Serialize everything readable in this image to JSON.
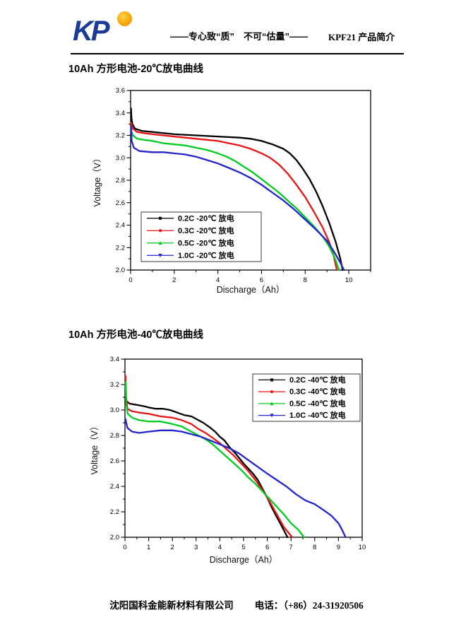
{
  "header": {
    "logo_text": "KP",
    "logo_color": "#1b3b97",
    "logo_sun_color": "#f7a300",
    "slogan": "——专心致“质”　不可“估量”——",
    "doc_label": "KPF21 产品简介"
  },
  "footer": {
    "company": "沈阳国科金能新材料有限公司",
    "phone": "电话：（+86）24-31920506"
  },
  "chart_data": [
    {
      "type": "line",
      "title": "10Ah 方形电池-20℃放电曲线",
      "xlabel": "Discharge（Ah）",
      "ylabel": "Voltage（V）",
      "xlim": [
        0,
        11
      ],
      "ylim": [
        2.0,
        3.6
      ],
      "grid": false,
      "legend_position": "lower-left",
      "x_ticks": {
        "values": [
          0,
          2,
          4,
          6,
          8,
          10
        ],
        "labels": [
          "0",
          "2",
          "4",
          "6",
          "8",
          "10"
        ]
      },
      "y_ticks": {
        "values": [
          2.0,
          2.2,
          2.4,
          2.6,
          2.8,
          3.0,
          3.2,
          3.4,
          3.6
        ],
        "labels": [
          "2.0",
          "2.2",
          "2.4",
          "2.6",
          "2.8",
          "3.0",
          "3.2",
          "3.4",
          "3.6"
        ]
      },
      "x_minor_step": 1,
      "y_minor_step": 0.1,
      "series": [
        {
          "name": "0.2C -20℃ 放电",
          "color": "#000000",
          "marker": "square",
          "points": [
            [
              0.02,
              3.44
            ],
            [
              0.04,
              3.36
            ],
            [
              0.08,
              3.3
            ],
            [
              0.2,
              3.26
            ],
            [
              0.5,
              3.24
            ],
            [
              1,
              3.23
            ],
            [
              1.5,
              3.22
            ],
            [
              2,
              3.21
            ],
            [
              3,
              3.2
            ],
            [
              4,
              3.19
            ],
            [
              5,
              3.18
            ],
            [
              5.5,
              3.17
            ],
            [
              6,
              3.15
            ],
            [
              6.5,
              3.12
            ],
            [
              7,
              3.08
            ],
            [
              7.3,
              3.04
            ],
            [
              7.6,
              2.98
            ],
            [
              7.9,
              2.9
            ],
            [
              8.2,
              2.81
            ],
            [
              8.5,
              2.7
            ],
            [
              8.8,
              2.57
            ],
            [
              9.1,
              2.42
            ],
            [
              9.4,
              2.25
            ],
            [
              9.6,
              2.11
            ],
            [
              9.72,
              2.0
            ]
          ]
        },
        {
          "name": "0.3C -20℃ 放电",
          "color": "#e81414",
          "marker": "circle",
          "points": [
            [
              0.02,
              3.31
            ],
            [
              0.1,
              3.26
            ],
            [
              0.3,
              3.23
            ],
            [
              0.6,
              3.22
            ],
            [
              1,
              3.21
            ],
            [
              1.5,
              3.2
            ],
            [
              2,
              3.19
            ],
            [
              2.5,
              3.18
            ],
            [
              3,
              3.17
            ],
            [
              3.5,
              3.16
            ],
            [
              4,
              3.15
            ],
            [
              4.5,
              3.13
            ],
            [
              5,
              3.11
            ],
            [
              5.5,
              3.08
            ],
            [
              6,
              3.04
            ],
            [
              6.4,
              3.0
            ],
            [
              6.8,
              2.94
            ],
            [
              7.2,
              2.86
            ],
            [
              7.6,
              2.76
            ],
            [
              8.0,
              2.65
            ],
            [
              8.4,
              2.52
            ],
            [
              8.8,
              2.38
            ],
            [
              9.1,
              2.25
            ],
            [
              9.3,
              2.13
            ],
            [
              9.45,
              2.0
            ]
          ]
        },
        {
          "name": "0.5C -20℃ 放电",
          "color": "#00cc22",
          "marker": "triangle-up",
          "points": [
            [
              0.02,
              3.25
            ],
            [
              0.1,
              3.2
            ],
            [
              0.3,
              3.17
            ],
            [
              0.6,
              3.16
            ],
            [
              1,
              3.15
            ],
            [
              1.5,
              3.13
            ],
            [
              2,
              3.12
            ],
            [
              2.5,
              3.11
            ],
            [
              3,
              3.09
            ],
            [
              3.5,
              3.07
            ],
            [
              4,
              3.04
            ],
            [
              4.4,
              3.01
            ],
            [
              4.8,
              2.97
            ],
            [
              5.2,
              2.92
            ],
            [
              5.6,
              2.87
            ],
            [
              6,
              2.81
            ],
            [
              6.4,
              2.75
            ],
            [
              6.8,
              2.69
            ],
            [
              7.2,
              2.62
            ],
            [
              7.6,
              2.55
            ],
            [
              8,
              2.47
            ],
            [
              8.4,
              2.39
            ],
            [
              8.8,
              2.3
            ],
            [
              9.1,
              2.21
            ],
            [
              9.35,
              2.11
            ],
            [
              9.55,
              2.0
            ]
          ]
        },
        {
          "name": "1.0C -20℃ 放电",
          "color": "#2424cc",
          "marker": "triangle-down",
          "points": [
            [
              0.02,
              3.28
            ],
            [
              0.05,
              3.15
            ],
            [
              0.15,
              3.09
            ],
            [
              0.4,
              3.06
            ],
            [
              1,
              3.05
            ],
            [
              1.5,
              3.05
            ],
            [
              2,
              3.04
            ],
            [
              2.5,
              3.03
            ],
            [
              3,
              3.01
            ],
            [
              3.5,
              2.98
            ],
            [
              4,
              2.95
            ],
            [
              4.5,
              2.91
            ],
            [
              5,
              2.87
            ],
            [
              5.5,
              2.82
            ],
            [
              6,
              2.76
            ],
            [
              6.5,
              2.69
            ],
            [
              7,
              2.62
            ],
            [
              7.5,
              2.54
            ],
            [
              8,
              2.45
            ],
            [
              8.5,
              2.36
            ],
            [
              9,
              2.26
            ],
            [
              9.3,
              2.17
            ],
            [
              9.6,
              2.07
            ],
            [
              9.78,
              2.0
            ]
          ]
        }
      ]
    },
    {
      "type": "line",
      "title": "10Ah 方形电池-40℃放电曲线",
      "xlabel": "Discharge（Ah）",
      "ylabel": "Voltage（V）",
      "xlim": [
        0,
        10
      ],
      "ylim": [
        2.0,
        3.4
      ],
      "grid": false,
      "legend_position": "upper-right",
      "x_ticks": {
        "values": [
          0,
          1,
          2,
          3,
          4,
          5,
          6,
          7,
          8,
          9,
          10
        ],
        "labels": [
          "0",
          "1",
          "2",
          "3",
          "4",
          "5",
          "6",
          "7",
          "8",
          "9",
          "10"
        ]
      },
      "y_ticks": {
        "values": [
          2.0,
          2.2,
          2.4,
          2.6,
          2.8,
          3.0,
          3.2,
          3.4
        ],
        "labels": [
          "2.0",
          "2.2",
          "2.4",
          "2.6",
          "2.8",
          "3.0",
          "3.2",
          "3.4"
        ]
      },
      "x_minor_step": 0.5,
      "y_minor_step": 0.1,
      "series": [
        {
          "name": "0.2C -40℃ 放电",
          "color": "#000000",
          "marker": "square",
          "points": [
            [
              0.02,
              3.12
            ],
            [
              0.06,
              3.07
            ],
            [
              0.2,
              3.05
            ],
            [
              0.5,
              3.04
            ],
            [
              0.8,
              3.03
            ],
            [
              1,
              3.02
            ],
            [
              1.3,
              3.01
            ],
            [
              1.6,
              3.01
            ],
            [
              1.9,
              3.0
            ],
            [
              2.2,
              2.98
            ],
            [
              2.5,
              2.96
            ],
            [
              2.8,
              2.95
            ],
            [
              3.0,
              2.93
            ],
            [
              3.3,
              2.9
            ],
            [
              3.6,
              2.86
            ],
            [
              3.8,
              2.83
            ],
            [
              4.0,
              2.79
            ],
            [
              4.2,
              2.76
            ],
            [
              4.4,
              2.71
            ],
            [
              4.7,
              2.65
            ],
            [
              5.0,
              2.58
            ],
            [
              5.2,
              2.54
            ],
            [
              5.4,
              2.5
            ],
            [
              5.6,
              2.45
            ],
            [
              5.8,
              2.38
            ],
            [
              6.0,
              2.31
            ],
            [
              6.2,
              2.23
            ],
            [
              6.4,
              2.16
            ],
            [
              6.6,
              2.09
            ],
            [
              6.85,
              2.0
            ]
          ]
        },
        {
          "name": "0.3C -40℃ 放电",
          "color": "#e81414",
          "marker": "circle",
          "points": [
            [
              0.02,
              3.27
            ],
            [
              0.05,
              3.1
            ],
            [
              0.1,
              3.01
            ],
            [
              0.3,
              2.99
            ],
            [
              0.6,
              2.98
            ],
            [
              1,
              2.97
            ],
            [
              1.5,
              2.95
            ],
            [
              2,
              2.94
            ],
            [
              2.4,
              2.92
            ],
            [
              2.8,
              2.89
            ],
            [
              3.1,
              2.85
            ],
            [
              3.4,
              2.82
            ],
            [
              3.7,
              2.78
            ],
            [
              4,
              2.74
            ],
            [
              4.3,
              2.69
            ],
            [
              4.6,
              2.64
            ],
            [
              4.9,
              2.58
            ],
            [
              5.2,
              2.52
            ],
            [
              5.5,
              2.45
            ],
            [
              5.8,
              2.37
            ],
            [
              6.1,
              2.28
            ],
            [
              6.4,
              2.18
            ],
            [
              6.7,
              2.08
            ],
            [
              7.05,
              2.0
            ]
          ]
        },
        {
          "name": "0.5C -40℃ 放电",
          "color": "#00cc22",
          "marker": "triangle-up",
          "points": [
            [
              0.02,
              3.22
            ],
            [
              0.05,
              3.05
            ],
            [
              0.12,
              2.97
            ],
            [
              0.3,
              2.94
            ],
            [
              0.6,
              2.92
            ],
            [
              1,
              2.91
            ],
            [
              1.5,
              2.91
            ],
            [
              2,
              2.89
            ],
            [
              2.4,
              2.87
            ],
            [
              2.8,
              2.83
            ],
            [
              3.1,
              2.8
            ],
            [
              3.4,
              2.77
            ],
            [
              3.7,
              2.73
            ],
            [
              4,
              2.68
            ],
            [
              4.3,
              2.63
            ],
            [
              4.6,
              2.58
            ],
            [
              4.9,
              2.53
            ],
            [
              5.2,
              2.47
            ],
            [
              5.5,
              2.42
            ],
            [
              5.8,
              2.36
            ],
            [
              6.1,
              2.3
            ],
            [
              6.4,
              2.24
            ],
            [
              6.7,
              2.18
            ],
            [
              7,
              2.11
            ],
            [
              7.3,
              2.06
            ],
            [
              7.55,
              2.0
            ]
          ]
        },
        {
          "name": "1.0C -40℃ 放电",
          "color": "#2424cc",
          "marker": "triangle-down",
          "points": [
            [
              0.02,
              2.93
            ],
            [
              0.1,
              2.86
            ],
            [
              0.3,
              2.83
            ],
            [
              0.6,
              2.82
            ],
            [
              1,
              2.83
            ],
            [
              1.5,
              2.84
            ],
            [
              2,
              2.84
            ],
            [
              2.4,
              2.83
            ],
            [
              2.8,
              2.81
            ],
            [
              3.2,
              2.79
            ],
            [
              3.6,
              2.76
            ],
            [
              4,
              2.73
            ],
            [
              4.4,
              2.7
            ],
            [
              4.8,
              2.66
            ],
            [
              5.1,
              2.62
            ],
            [
              5.4,
              2.58
            ],
            [
              5.7,
              2.54
            ],
            [
              6,
              2.5
            ],
            [
              6.4,
              2.45
            ],
            [
              6.8,
              2.4
            ],
            [
              7.2,
              2.34
            ],
            [
              7.6,
              2.29
            ],
            [
              8,
              2.26
            ],
            [
              8.4,
              2.21
            ],
            [
              8.7,
              2.17
            ],
            [
              9,
              2.11
            ],
            [
              9.15,
              2.06
            ],
            [
              9.3,
              2.0
            ]
          ]
        }
      ]
    }
  ]
}
